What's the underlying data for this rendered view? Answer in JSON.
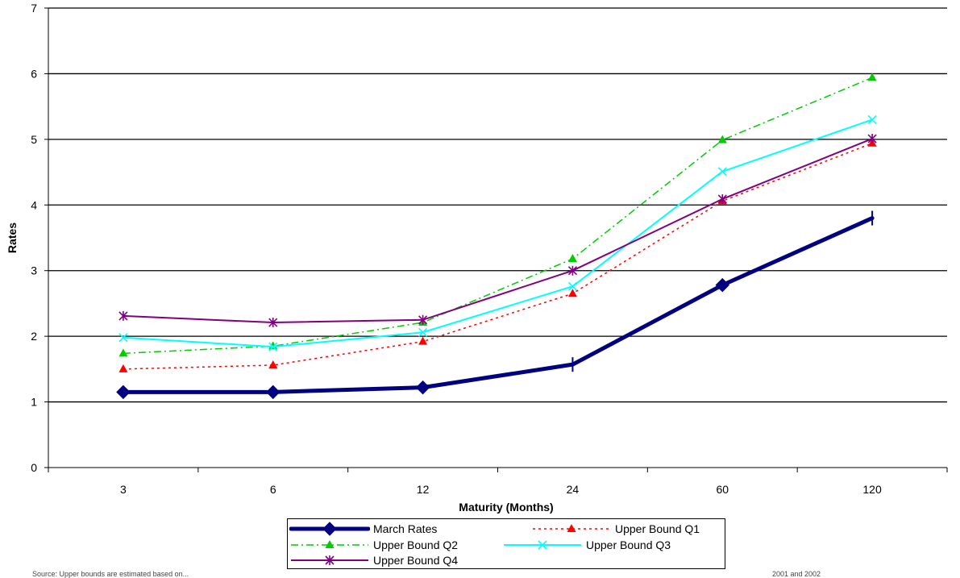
{
  "chart_data": {
    "type": "line",
    "xlabel": "Maturity (Months)",
    "ylabel": "Rates",
    "ylim": [
      0,
      7
    ],
    "yticks": [
      0,
      1,
      2,
      3,
      4,
      5,
      6,
      7
    ],
    "categories": [
      "3",
      "6",
      "12",
      "24",
      "60",
      "120"
    ],
    "grid": "horizontal",
    "legend_position": "bottom",
    "series": [
      {
        "name": "March Rates",
        "values": [
          1.15,
          1.15,
          1.22,
          1.57,
          2.78,
          3.8
        ],
        "color": "#000080",
        "style": "solid-thick",
        "marker": "diamond"
      },
      {
        "name": "Upper Bound Q1",
        "values": [
          1.5,
          1.56,
          1.92,
          2.65,
          4.06,
          4.94
        ],
        "color": "#ff0000",
        "style": "dotted",
        "marker": "triangle"
      },
      {
        "name": "Upper Bound Q2",
        "values": [
          1.74,
          1.85,
          2.21,
          3.18,
          4.99,
          5.94
        ],
        "color": "#00cc00",
        "style": "dashdot",
        "marker": "triangle"
      },
      {
        "name": "Upper Bound Q3",
        "values": [
          1.98,
          1.84,
          2.06,
          2.76,
          4.51,
          5.3
        ],
        "color": "#00ffff",
        "style": "solid",
        "marker": "x"
      },
      {
        "name": "Upper Bound Q4",
        "values": [
          2.31,
          2.21,
          2.25,
          3.0,
          4.09,
          5.01
        ],
        "color": "#800080",
        "style": "solid",
        "marker": "asterisk"
      }
    ]
  },
  "footnote": {
    "left": "Source: Upper bounds are estimated based on...",
    "right": "2001 and 2002"
  }
}
